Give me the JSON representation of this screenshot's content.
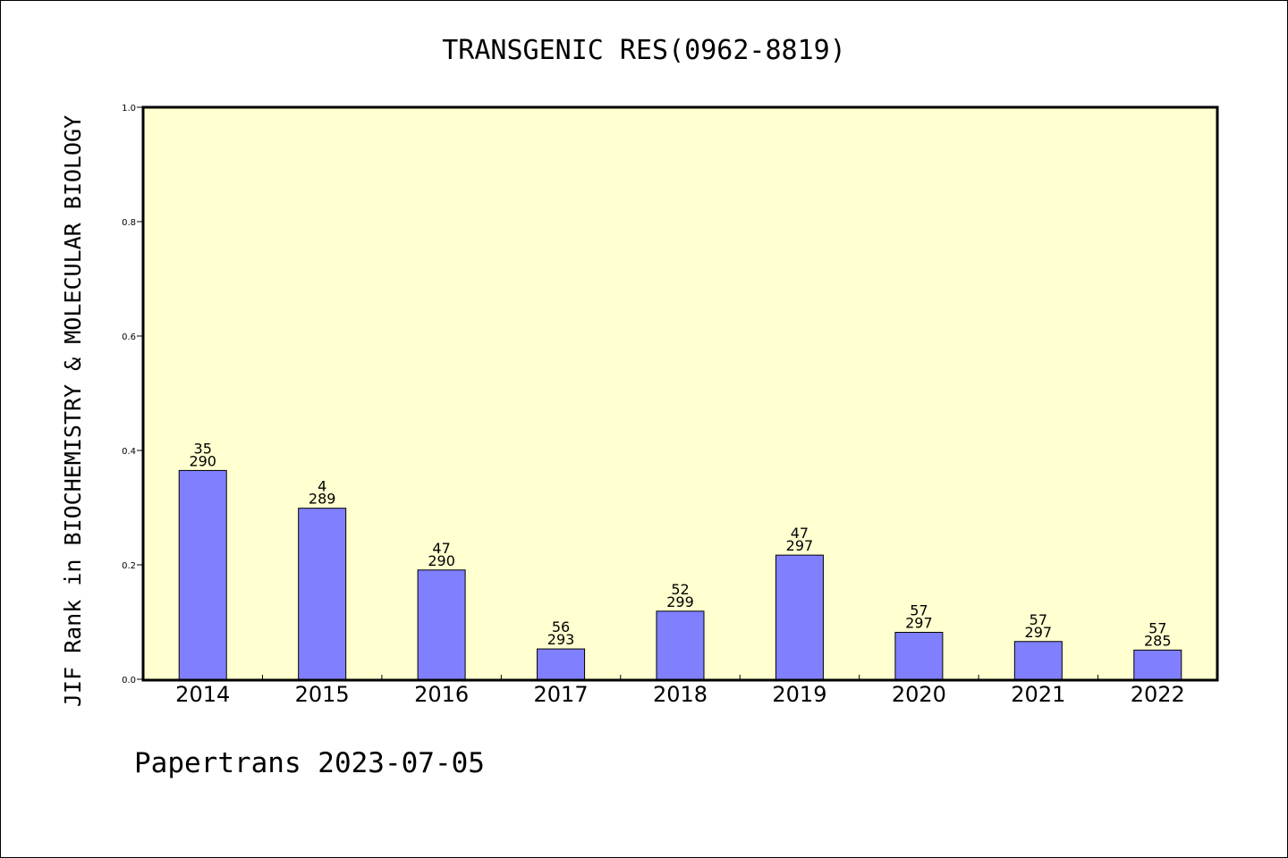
{
  "chart_data": {
    "type": "bar",
    "title": "TRANSGENIC RES(0962-8819)",
    "ylabel": "JIF Rank in BIOCHEMISTRY & MOLECULAR BIOLOGY",
    "xlabel": "",
    "ylim": [
      0,
      1.0
    ],
    "yticks": [
      "0.0",
      "0.2",
      "0.4",
      "0.6",
      "0.8",
      "1.0"
    ],
    "categories": [
      "2014",
      "2015",
      "2016",
      "2017",
      "2018",
      "2019",
      "2020",
      "2021",
      "2022"
    ],
    "values": [
      0.365,
      0.299,
      0.191,
      0.053,
      0.119,
      0.217,
      0.082,
      0.066,
      0.051
    ],
    "labels": [
      {
        "rank": "35",
        "total": "290"
      },
      {
        "rank": "4",
        "total": "289"
      },
      {
        "rank": "47",
        "total": "290"
      },
      {
        "rank": "56",
        "total": "293"
      },
      {
        "rank": "52",
        "total": "299"
      },
      {
        "rank": "47",
        "total": "297"
      },
      {
        "rank": "57",
        "total": "297"
      },
      {
        "rank": "57",
        "total": "297"
      },
      {
        "rank": "57",
        "total": "285"
      }
    ],
    "colors": {
      "plot_bg": "#ffffd0",
      "bar": "#8080ff"
    },
    "grid": false,
    "legend": "none"
  },
  "footer": "Papertrans 2023-07-05"
}
